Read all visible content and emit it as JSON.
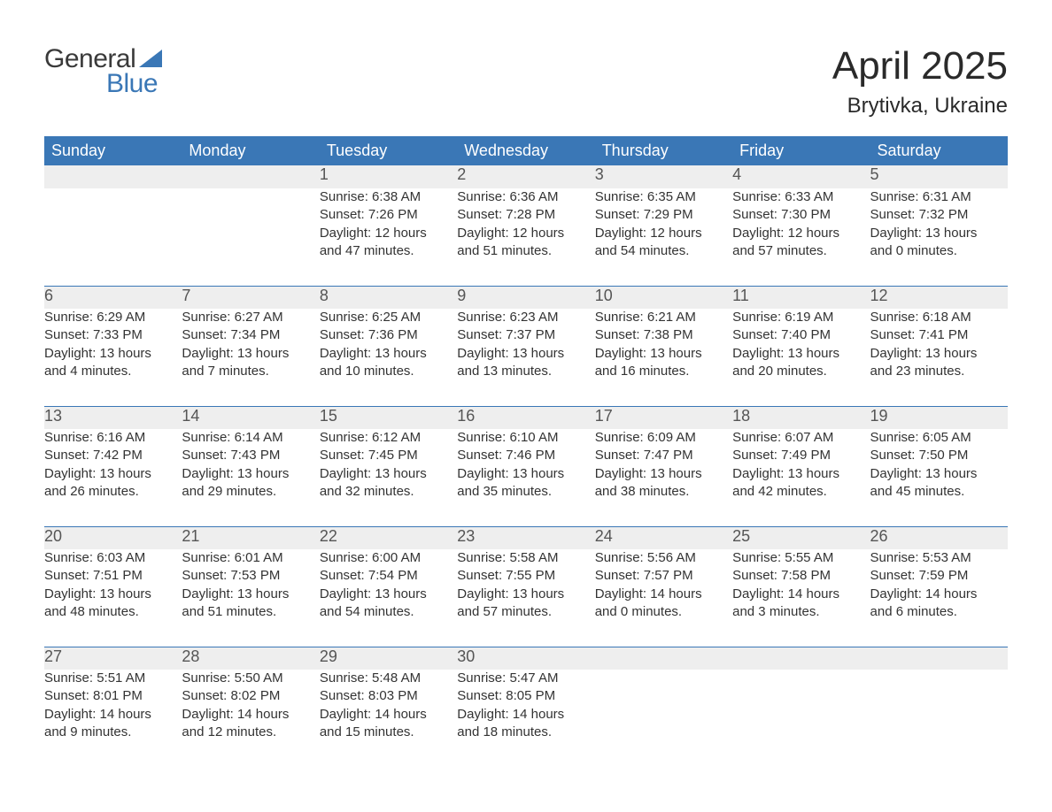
{
  "logo": {
    "word1": "General",
    "word2": "Blue",
    "accent_color": "#3a77b6",
    "text_color": "#3a3a3a"
  },
  "title": "April 2025",
  "location": "Brytivka, Ukraine",
  "colors": {
    "header_bg": "#3a77b6",
    "header_text": "#ffffff",
    "daynum_bg": "#eeeeee",
    "daynum_text": "#555555",
    "body_text": "#333333",
    "rule": "#3a77b6",
    "page_bg": "#ffffff"
  },
  "typography": {
    "title_fontsize": 44,
    "location_fontsize": 24,
    "header_fontsize": 18,
    "daynum_fontsize": 18,
    "detail_fontsize": 15
  },
  "weekdays": [
    "Sunday",
    "Monday",
    "Tuesday",
    "Wednesday",
    "Thursday",
    "Friday",
    "Saturday"
  ],
  "weeks": [
    [
      null,
      null,
      {
        "n": "1",
        "sr": "Sunrise: 6:38 AM",
        "ss": "Sunset: 7:26 PM",
        "d1": "Daylight: 12 hours",
        "d2": "and 47 minutes."
      },
      {
        "n": "2",
        "sr": "Sunrise: 6:36 AM",
        "ss": "Sunset: 7:28 PM",
        "d1": "Daylight: 12 hours",
        "d2": "and 51 minutes."
      },
      {
        "n": "3",
        "sr": "Sunrise: 6:35 AM",
        "ss": "Sunset: 7:29 PM",
        "d1": "Daylight: 12 hours",
        "d2": "and 54 minutes."
      },
      {
        "n": "4",
        "sr": "Sunrise: 6:33 AM",
        "ss": "Sunset: 7:30 PM",
        "d1": "Daylight: 12 hours",
        "d2": "and 57 minutes."
      },
      {
        "n": "5",
        "sr": "Sunrise: 6:31 AM",
        "ss": "Sunset: 7:32 PM",
        "d1": "Daylight: 13 hours",
        "d2": "and 0 minutes."
      }
    ],
    [
      {
        "n": "6",
        "sr": "Sunrise: 6:29 AM",
        "ss": "Sunset: 7:33 PM",
        "d1": "Daylight: 13 hours",
        "d2": "and 4 minutes."
      },
      {
        "n": "7",
        "sr": "Sunrise: 6:27 AM",
        "ss": "Sunset: 7:34 PM",
        "d1": "Daylight: 13 hours",
        "d2": "and 7 minutes."
      },
      {
        "n": "8",
        "sr": "Sunrise: 6:25 AM",
        "ss": "Sunset: 7:36 PM",
        "d1": "Daylight: 13 hours",
        "d2": "and 10 minutes."
      },
      {
        "n": "9",
        "sr": "Sunrise: 6:23 AM",
        "ss": "Sunset: 7:37 PM",
        "d1": "Daylight: 13 hours",
        "d2": "and 13 minutes."
      },
      {
        "n": "10",
        "sr": "Sunrise: 6:21 AM",
        "ss": "Sunset: 7:38 PM",
        "d1": "Daylight: 13 hours",
        "d2": "and 16 minutes."
      },
      {
        "n": "11",
        "sr": "Sunrise: 6:19 AM",
        "ss": "Sunset: 7:40 PM",
        "d1": "Daylight: 13 hours",
        "d2": "and 20 minutes."
      },
      {
        "n": "12",
        "sr": "Sunrise: 6:18 AM",
        "ss": "Sunset: 7:41 PM",
        "d1": "Daylight: 13 hours",
        "d2": "and 23 minutes."
      }
    ],
    [
      {
        "n": "13",
        "sr": "Sunrise: 6:16 AM",
        "ss": "Sunset: 7:42 PM",
        "d1": "Daylight: 13 hours",
        "d2": "and 26 minutes."
      },
      {
        "n": "14",
        "sr": "Sunrise: 6:14 AM",
        "ss": "Sunset: 7:43 PM",
        "d1": "Daylight: 13 hours",
        "d2": "and 29 minutes."
      },
      {
        "n": "15",
        "sr": "Sunrise: 6:12 AM",
        "ss": "Sunset: 7:45 PM",
        "d1": "Daylight: 13 hours",
        "d2": "and 32 minutes."
      },
      {
        "n": "16",
        "sr": "Sunrise: 6:10 AM",
        "ss": "Sunset: 7:46 PM",
        "d1": "Daylight: 13 hours",
        "d2": "and 35 minutes."
      },
      {
        "n": "17",
        "sr": "Sunrise: 6:09 AM",
        "ss": "Sunset: 7:47 PM",
        "d1": "Daylight: 13 hours",
        "d2": "and 38 minutes."
      },
      {
        "n": "18",
        "sr": "Sunrise: 6:07 AM",
        "ss": "Sunset: 7:49 PM",
        "d1": "Daylight: 13 hours",
        "d2": "and 42 minutes."
      },
      {
        "n": "19",
        "sr": "Sunrise: 6:05 AM",
        "ss": "Sunset: 7:50 PM",
        "d1": "Daylight: 13 hours",
        "d2": "and 45 minutes."
      }
    ],
    [
      {
        "n": "20",
        "sr": "Sunrise: 6:03 AM",
        "ss": "Sunset: 7:51 PM",
        "d1": "Daylight: 13 hours",
        "d2": "and 48 minutes."
      },
      {
        "n": "21",
        "sr": "Sunrise: 6:01 AM",
        "ss": "Sunset: 7:53 PM",
        "d1": "Daylight: 13 hours",
        "d2": "and 51 minutes."
      },
      {
        "n": "22",
        "sr": "Sunrise: 6:00 AM",
        "ss": "Sunset: 7:54 PM",
        "d1": "Daylight: 13 hours",
        "d2": "and 54 minutes."
      },
      {
        "n": "23",
        "sr": "Sunrise: 5:58 AM",
        "ss": "Sunset: 7:55 PM",
        "d1": "Daylight: 13 hours",
        "d2": "and 57 minutes."
      },
      {
        "n": "24",
        "sr": "Sunrise: 5:56 AM",
        "ss": "Sunset: 7:57 PM",
        "d1": "Daylight: 14 hours",
        "d2": "and 0 minutes."
      },
      {
        "n": "25",
        "sr": "Sunrise: 5:55 AM",
        "ss": "Sunset: 7:58 PM",
        "d1": "Daylight: 14 hours",
        "d2": "and 3 minutes."
      },
      {
        "n": "26",
        "sr": "Sunrise: 5:53 AM",
        "ss": "Sunset: 7:59 PM",
        "d1": "Daylight: 14 hours",
        "d2": "and 6 minutes."
      }
    ],
    [
      {
        "n": "27",
        "sr": "Sunrise: 5:51 AM",
        "ss": "Sunset: 8:01 PM",
        "d1": "Daylight: 14 hours",
        "d2": "and 9 minutes."
      },
      {
        "n": "28",
        "sr": "Sunrise: 5:50 AM",
        "ss": "Sunset: 8:02 PM",
        "d1": "Daylight: 14 hours",
        "d2": "and 12 minutes."
      },
      {
        "n": "29",
        "sr": "Sunrise: 5:48 AM",
        "ss": "Sunset: 8:03 PM",
        "d1": "Daylight: 14 hours",
        "d2": "and 15 minutes."
      },
      {
        "n": "30",
        "sr": "Sunrise: 5:47 AM",
        "ss": "Sunset: 8:05 PM",
        "d1": "Daylight: 14 hours",
        "d2": "and 18 minutes."
      },
      null,
      null,
      null
    ]
  ]
}
